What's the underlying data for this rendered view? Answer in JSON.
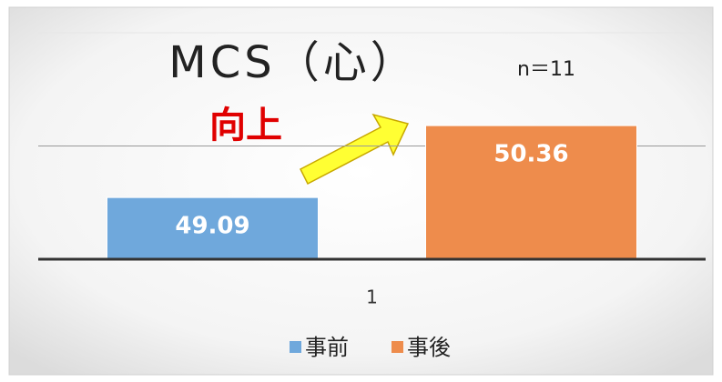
{
  "chart_data": {
    "type": "bar",
    "title": "MCS（心）",
    "annotations": [
      "n＝11",
      "向上"
    ],
    "categories": [
      "1"
    ],
    "series": [
      {
        "name": "事前",
        "color": "#6fa8dc",
        "values": [
          49.09
        ]
      },
      {
        "name": "事後",
        "color": "#ee8c4c",
        "values": [
          50.36
        ]
      }
    ],
    "ylim": [
      48,
      52
    ],
    "yticks": [
      48,
      50,
      52
    ],
    "grid": true,
    "legend": "bottom"
  }
}
